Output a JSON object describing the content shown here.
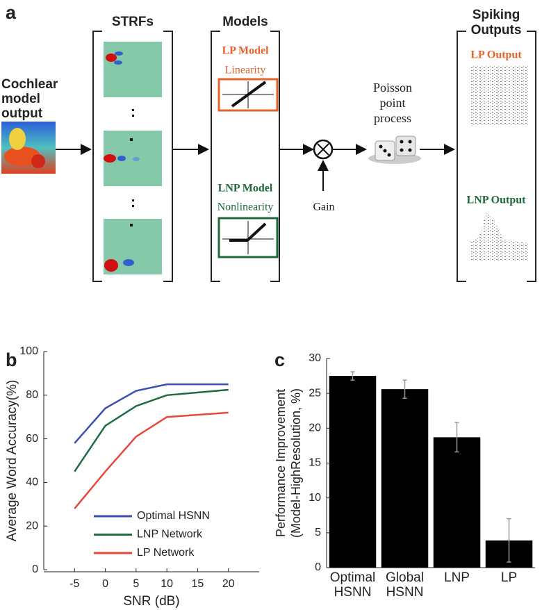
{
  "diagram": {
    "panel_label": "a",
    "input_label": [
      "Cochlear",
      "model",
      "output"
    ],
    "strfs_title": "STRFs",
    "models_title": "Models",
    "outputs_title": [
      "Spiking",
      "Outputs"
    ],
    "lp_model": "LP Model",
    "lp_function": "Linearity",
    "lnp_model": "LNP Model",
    "lnp_function": "Nonlinearity",
    "poisson": [
      "Poisson",
      "point",
      "process"
    ],
    "gain": "Gain",
    "lp_output": "LP Output",
    "lnp_output": "LNP Output"
  },
  "chart_data": [
    {
      "type": "line",
      "panel_label": "b",
      "xlabel": "SNR (dB)",
      "ylabel": "Average Word Accuracy(%)",
      "x": [
        -5,
        0,
        5,
        10,
        20
      ],
      "xlim": [
        -10,
        25
      ],
      "xticks": [
        -5,
        0,
        5,
        10,
        15,
        20
      ],
      "ylim": [
        0,
        100
      ],
      "yticks": [
        0,
        20,
        40,
        60,
        80,
        100
      ],
      "legend": "lower center",
      "series": [
        {
          "name": "Optimal HSNN",
          "color": "#3a4fb0",
          "values": [
            58,
            74,
            82,
            85,
            85
          ]
        },
        {
          "name": "LNP Network",
          "color": "#1e6b42",
          "values": [
            45,
            66,
            75,
            80,
            82.5
          ]
        },
        {
          "name": "LP Network",
          "color": "#e8463c",
          "values": [
            28,
            45,
            61,
            70,
            72
          ]
        }
      ]
    },
    {
      "type": "bar",
      "panel_label": "c",
      "ylabel": [
        "Performance Improvement",
        "(Model-HighResolution, %)"
      ],
      "categories": [
        "Optimal HSNN",
        "Global HSNN",
        "LNP",
        "LP"
      ],
      "values": [
        27.5,
        25.6,
        18.7,
        3.9
      ],
      "errors": [
        0.6,
        1.3,
        2.1,
        3.1
      ],
      "color": "#000000",
      "ylim": [
        0,
        30
      ],
      "yticks": [
        0,
        5,
        10,
        15,
        20,
        25,
        30
      ]
    }
  ]
}
